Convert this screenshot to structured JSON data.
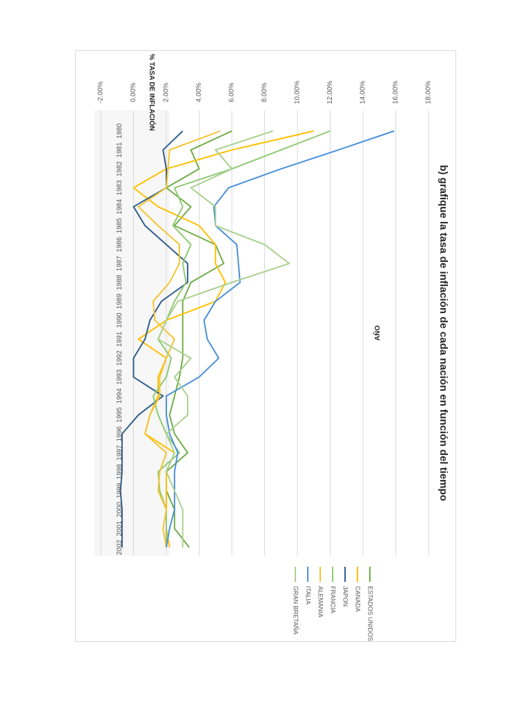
{
  "chart_data": {
    "type": "line",
    "title": "b) grafique la tasa de inflación de cada nación en función del tiempo",
    "ylabel": "% TASA DE INFLACIÓN",
    "xlabel": "AÑO",
    "ylim": [
      -0.02,
      0.18
    ],
    "yticks": [
      "-2.00%",
      "0.00%",
      "2.00%",
      "4.00%",
      "6.00%",
      "8.00%",
      "10.00%",
      "12.00%",
      "14.00%",
      "16.00%",
      "18.00%"
    ],
    "categories": [
      "1980",
      "1981",
      "1982",
      "1983",
      "1984",
      "1985",
      "1986",
      "1987",
      "1988",
      "1989",
      "1990",
      "1991",
      "1992",
      "1993",
      "1994",
      "1995",
      "1996",
      "1997",
      "1998",
      "1999",
      "2000",
      "2001",
      "2002"
    ],
    "grid": true,
    "legend_position": "right",
    "series": [
      {
        "name": "ESTADOS UNIDOS",
        "color": "#70ad47",
        "values": [
          0.06,
          0.035,
          0.04,
          0.02,
          0.035,
          0.025,
          0.05,
          0.055,
          0.035,
          0.03,
          0.03,
          0.03,
          0.03,
          0.028,
          0.025,
          0.022,
          0.025,
          0.033,
          0.02,
          0.02,
          0.025,
          0.025,
          0.034
        ]
      },
      {
        "name": "CANADA",
        "color": "#ffc000",
        "values": [
          0.11,
          0.06,
          0.02,
          0.0,
          0.015,
          0.04,
          0.05,
          0.05,
          0.056,
          0.05,
          0.02,
          0.003,
          0.02,
          0.015,
          0.015,
          0.01,
          0.007,
          0.025,
          0.02,
          0.02,
          0.02,
          0.02,
          0.022
        ]
      },
      {
        "name": "JAPON",
        "color": "#2e5d8e",
        "values": [
          0.03,
          0.018,
          0.02,
          0.02,
          0.0,
          0.007,
          0.02,
          0.033,
          0.033,
          0.017,
          0.01,
          0.007,
          0.0,
          0.0,
          0.018,
          0.003,
          -0.007,
          -0.007,
          -0.007,
          -0.008,
          -0.007,
          -0.007,
          -0.007
        ]
      },
      {
        "name": "FRANCIA",
        "color": "#8fc972",
        "values": [
          0.12,
          0.09,
          0.06,
          0.025,
          0.03,
          0.024,
          0.035,
          0.03,
          0.032,
          0.025,
          0.02,
          0.015,
          0.023,
          0.02,
          0.012,
          0.015,
          0.02,
          0.028,
          0.015,
          0.016,
          0.02,
          0.02,
          0.02
        ]
      },
      {
        "name": "ALEMANIA",
        "color": "#f4c430",
        "values": [
          0.053,
          0.022,
          0.021,
          0.02,
          0.003,
          0.015,
          0.028,
          0.028,
          0.022,
          0.012,
          0.013,
          0.025,
          0.02,
          0.016,
          0.016,
          0.01,
          0.007,
          0.02,
          0.016,
          0.015,
          0.02,
          0.018,
          0.02
        ]
      },
      {
        "name": "ITALIA",
        "color": "#4a90d9",
        "values": [
          0.159,
          0.125,
          0.09,
          0.058,
          0.049,
          0.05,
          0.063,
          0.064,
          0.065,
          0.05,
          0.043,
          0.045,
          0.052,
          0.04,
          0.02,
          0.02,
          0.022,
          0.027,
          0.025,
          0.025,
          0.025,
          0.022,
          0.02
        ]
      },
      {
        "name": "GRAN BRETAÑA",
        "color": "#a9d18e",
        "values": [
          0.085,
          0.05,
          0.06,
          0.035,
          0.05,
          0.05,
          0.08,
          0.095,
          0.06,
          0.027,
          0.02,
          0.015,
          0.035,
          0.025,
          0.033,
          0.033,
          0.02,
          0.025,
          0.02,
          0.025,
          0.03,
          0.03,
          0.03
        ]
      }
    ]
  }
}
